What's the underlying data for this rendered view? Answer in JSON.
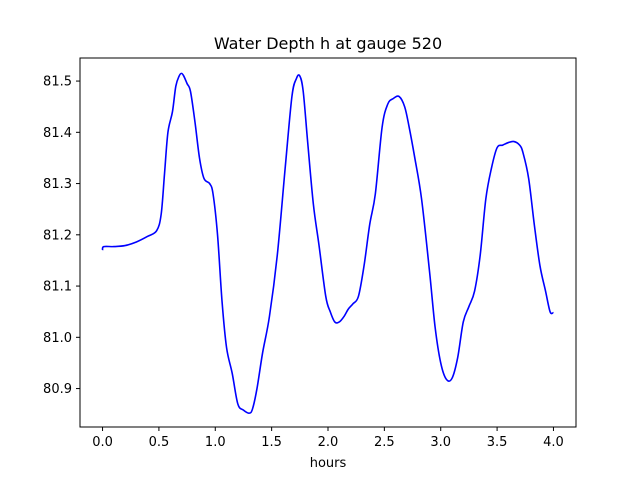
{
  "chart_data": {
    "type": "line",
    "title": "Water Depth h at gauge 520",
    "xlabel": "hours",
    "ylabel": "",
    "xlim": [
      -0.2,
      4.2
    ],
    "ylim": [
      80.825,
      81.545
    ],
    "xticks": [
      0.0,
      0.5,
      1.0,
      1.5,
      2.0,
      2.5,
      3.0,
      3.5,
      4.0
    ],
    "xtick_labels": [
      "0.0",
      "0.5",
      "1.0",
      "1.5",
      "2.0",
      "2.5",
      "3.0",
      "3.5",
      "4.0"
    ],
    "yticks": [
      80.9,
      81.0,
      81.1,
      81.2,
      81.3,
      81.4,
      81.5
    ],
    "ytick_labels": [
      "80.9",
      "81.0",
      "81.1",
      "81.2",
      "81.3",
      "81.4",
      "81.5"
    ],
    "grid": false,
    "series": [
      {
        "color": "#0000ff",
        "x": [
          0.0,
          0.01,
          0.1,
          0.2,
          0.3,
          0.4,
          0.48,
          0.52,
          0.55,
          0.58,
          0.62,
          0.65,
          0.68,
          0.7,
          0.72,
          0.75,
          0.78,
          0.82,
          0.86,
          0.9,
          0.95,
          0.98,
          1.02,
          1.06,
          1.1,
          1.15,
          1.2,
          1.25,
          1.3,
          1.33,
          1.37,
          1.42,
          1.48,
          1.55,
          1.62,
          1.68,
          1.72,
          1.75,
          1.78,
          1.82,
          1.87,
          1.92,
          1.98,
          2.02,
          2.06,
          2.1,
          2.14,
          2.18,
          2.22,
          2.27,
          2.32,
          2.37,
          2.42,
          2.48,
          2.53,
          2.58,
          2.63,
          2.68,
          2.72,
          2.77,
          2.83,
          2.9,
          2.95,
          3.0,
          3.05,
          3.1,
          3.15,
          3.2,
          3.25,
          3.3,
          3.35,
          3.4,
          3.45,
          3.5,
          3.55,
          3.6,
          3.65,
          3.7,
          3.73,
          3.78,
          3.83,
          3.88,
          3.93,
          3.97,
          4.0
        ],
        "y": [
          81.17,
          81.177,
          81.177,
          81.179,
          81.186,
          81.197,
          81.208,
          81.24,
          81.32,
          81.4,
          81.44,
          81.49,
          81.51,
          81.515,
          81.51,
          81.495,
          81.48,
          81.42,
          81.35,
          81.31,
          81.3,
          81.28,
          81.2,
          81.07,
          80.98,
          80.93,
          80.87,
          80.858,
          80.852,
          80.86,
          80.9,
          80.97,
          81.04,
          81.16,
          81.33,
          81.47,
          81.505,
          81.51,
          81.48,
          81.38,
          81.26,
          81.18,
          81.08,
          81.05,
          81.03,
          81.03,
          81.04,
          81.055,
          81.065,
          81.08,
          81.14,
          81.22,
          81.28,
          81.41,
          81.455,
          81.466,
          81.47,
          81.45,
          81.41,
          81.35,
          81.27,
          81.13,
          81.02,
          80.95,
          80.918,
          80.92,
          80.96,
          81.03,
          81.06,
          81.09,
          81.16,
          81.27,
          81.33,
          81.37,
          81.375,
          81.38,
          81.382,
          81.375,
          81.36,
          81.31,
          81.22,
          81.14,
          81.09,
          81.05,
          81.048
        ]
      }
    ]
  }
}
